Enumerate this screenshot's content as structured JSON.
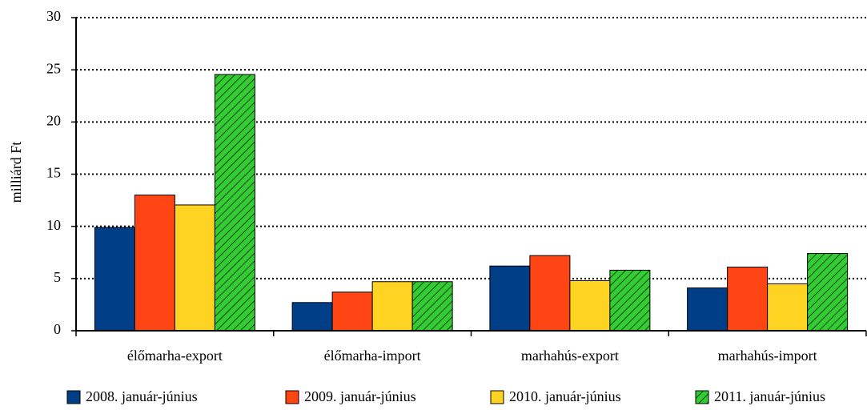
{
  "chart_data": {
    "type": "bar",
    "y_label": "milliárd Ft",
    "categories": [
      "élőmarha-export",
      "élőmarha-import",
      "marhahús-export",
      "marhahús-import"
    ],
    "series": [
      {
        "name": "2008. január-június",
        "color": "#003f87",
        "values": [
          9.9,
          2.7,
          6.2,
          4.1
        ]
      },
      {
        "name": "2009. január-június",
        "color": "#ff4514",
        "values": [
          13.0,
          3.7,
          7.2,
          6.1
        ]
      },
      {
        "name": "2010. január-június",
        "color": "#ffd321",
        "values": [
          12.05,
          4.7,
          4.8,
          4.5
        ]
      },
      {
        "name": "2011. január-június",
        "color": "#33cc33",
        "hatch": true,
        "values": [
          24.55,
          4.7,
          5.8,
          7.4
        ]
      }
    ],
    "ylim": [
      0,
      30
    ],
    "yticks": [
      0,
      5,
      10,
      15,
      20,
      25,
      30
    ],
    "grid": true,
    "legend": "bottom"
  }
}
